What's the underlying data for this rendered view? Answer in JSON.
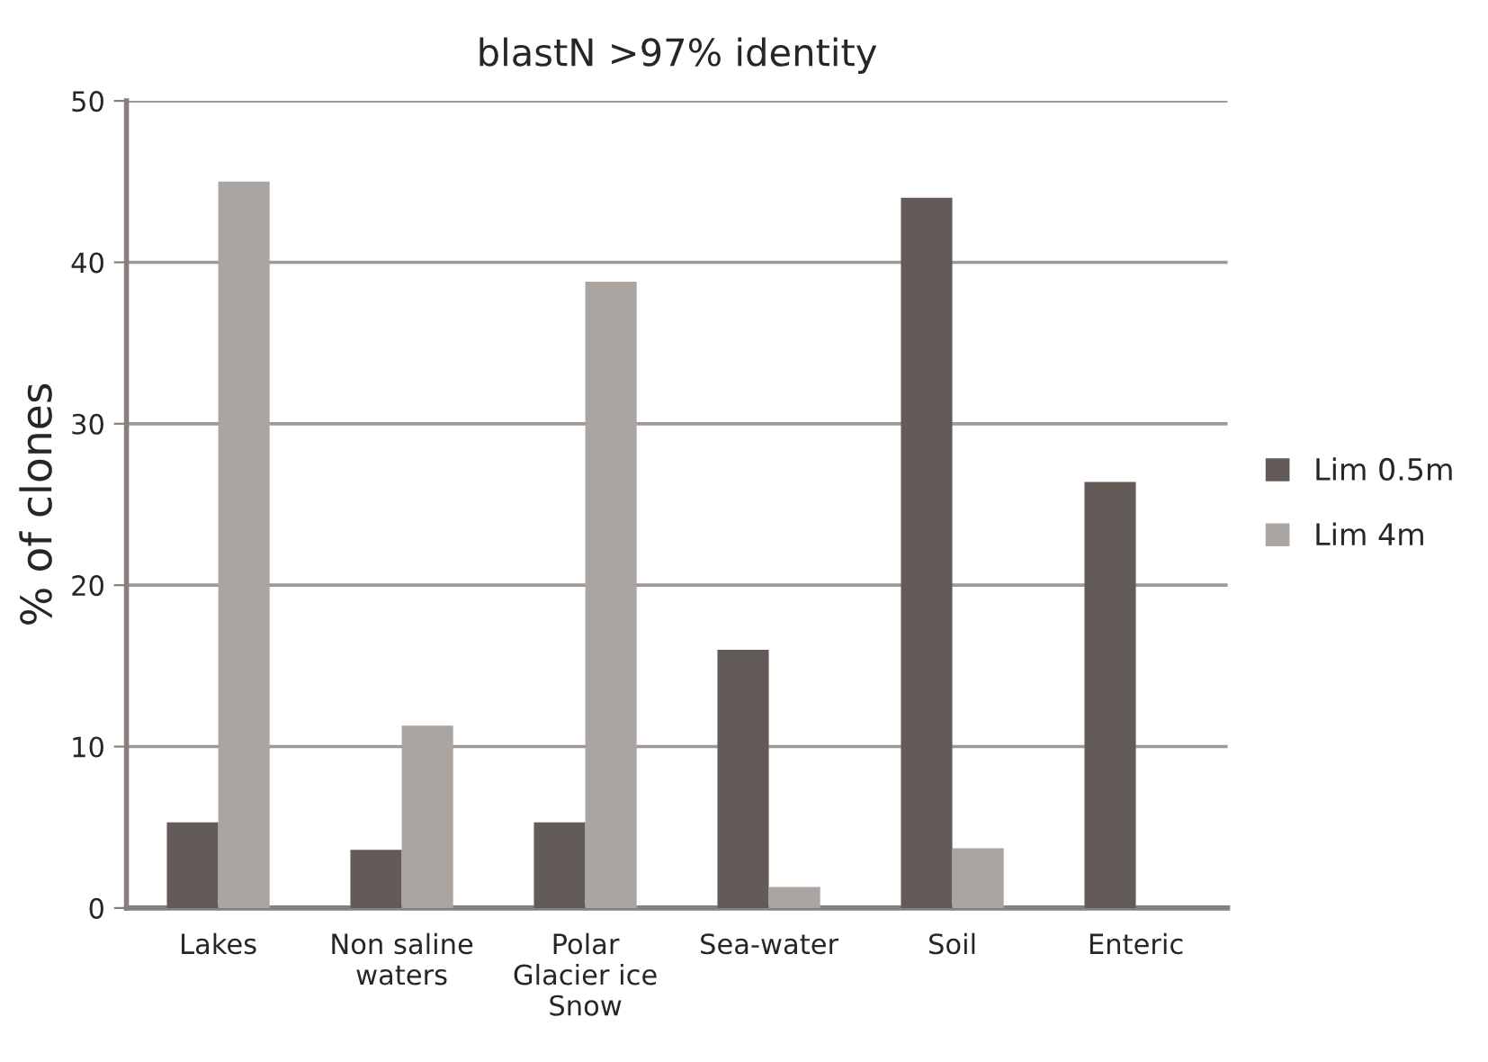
{
  "chart_data": {
    "type": "bar",
    "title": "blastN >97% identity",
    "ylabel": "% of clones",
    "categories": [
      "Lakes",
      "Non saline\nwaters",
      "Polar\nGlacier ice\nSnow",
      "Sea-water",
      "Soil",
      "Enteric"
    ],
    "series": [
      {
        "name": "Lim 0.5m",
        "color": "#625b58",
        "values": [
          5.3,
          3.6,
          5.3,
          16,
          44,
          26.4
        ]
      },
      {
        "name": "Lim 4m",
        "color": "#aba5a2",
        "values": [
          45,
          11.3,
          38.8,
          1.3,
          3.7,
          0
        ]
      }
    ],
    "ylim": [
      0,
      50
    ],
    "yticks": [
      0,
      10,
      20,
      30,
      40,
      50
    ],
    "grid": "y",
    "legend": "right"
  }
}
